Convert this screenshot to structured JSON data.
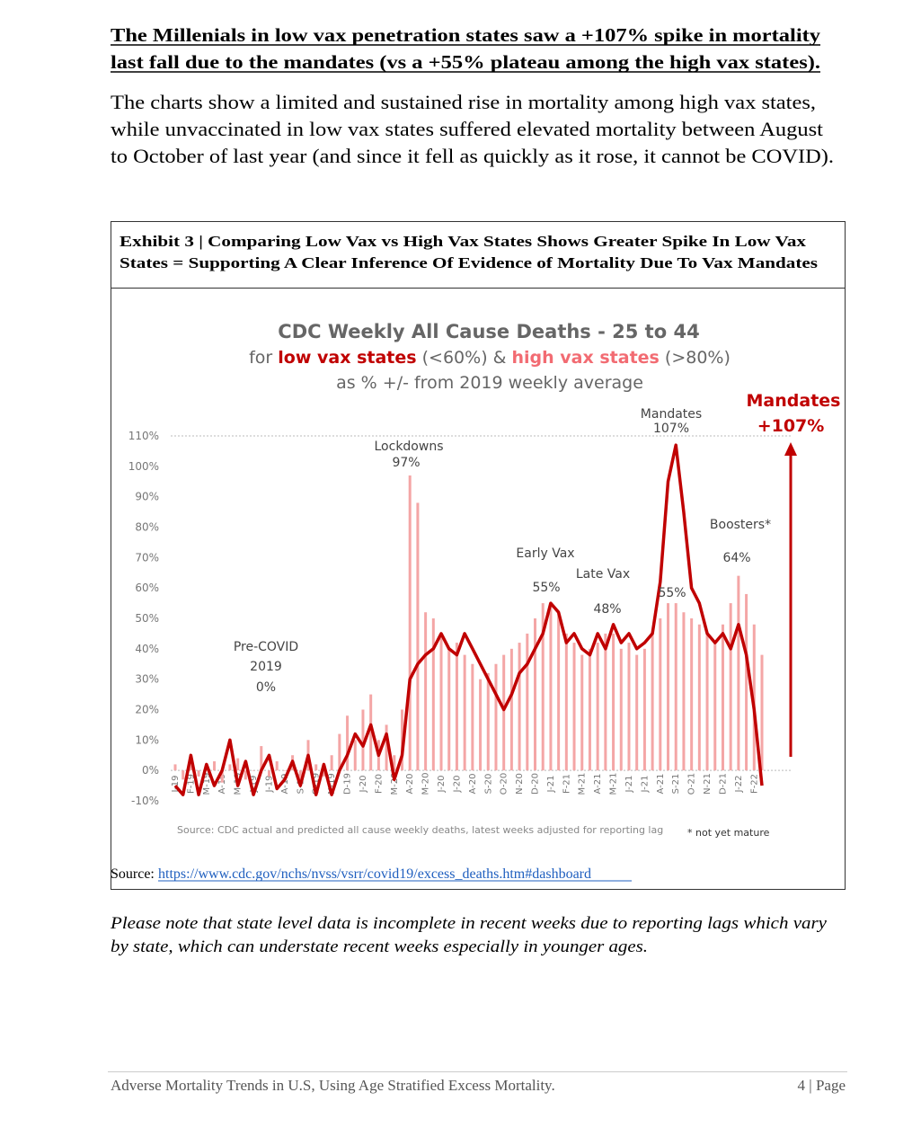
{
  "heading": [
    "The Millenials in low vax penetration states saw a +107% spike in mortality",
    "last fall due to the mandates (vs a +55% plateau among the high vax states)."
  ],
  "intro": [
    "The charts show a limited and sustained rise in mortality among high vax states,",
    "while unvaccinated in low vax states suffered elevated mortality between August",
    "to October of last year (and since it fell as quickly as it rose, it cannot be COVID)."
  ],
  "exhibit": {
    "title": [
      "Exhibit 3 | Comparing Low Vax vs High Vax States Shows Greater Spike In Low Vax",
      "States = Supporting A Clear Inference Of Evidence of Mortality Due To Vax Mandates"
    ],
    "source_label": "Source:",
    "source_url": "https://www.cdc.gov/nchs/nvss/vsrr/covid19/excess_deaths.htm#dashboard"
  },
  "chart_data": {
    "type": "combo",
    "title": "CDC Weekly All Cause Deaths - 25 to 44",
    "subtitle": [
      "for ",
      "low vax states",
      " (<60%) & ",
      "high vax states",
      " (>80%)"
    ],
    "subtitle2": "as % +/- from 2019 weekly average",
    "categories": [
      "J-19",
      null,
      "F-19",
      null,
      "M-19",
      null,
      "A-19",
      null,
      "M-19",
      null,
      "J-19",
      null,
      "J-19",
      null,
      "A-19",
      null,
      "S-19",
      null,
      "O-19",
      null,
      "N-19",
      null,
      "D-19",
      null,
      "J-20",
      null,
      "F-20",
      null,
      "M-20",
      null,
      "A-20",
      null,
      "M-20",
      null,
      "J-20",
      null,
      "J-20",
      null,
      "A-20",
      null,
      "S-20",
      null,
      "O-20",
      null,
      "N-20",
      null,
      "D-20",
      null,
      "J-21",
      null,
      "F-21",
      null,
      "M-21",
      null,
      "A-21",
      null,
      "M-21",
      null,
      "J-21",
      null,
      "J-21",
      null,
      "A-21",
      null,
      "S-21",
      null,
      "O-21",
      null,
      "N-21",
      null,
      "D-21",
      null,
      "J-22",
      null,
      "F-22",
      null
    ],
    "series": [
      {
        "kind": "bar",
        "color": "#f4a6a6",
        "values": [
          2,
          -3,
          5,
          -2,
          0,
          3,
          -4,
          2,
          4,
          -3,
          0,
          8,
          -2,
          3,
          0,
          5,
          -3,
          10,
          2,
          -2,
          5,
          12,
          18,
          10,
          20,
          25,
          10,
          15,
          5,
          20,
          97,
          88,
          52,
          50,
          45,
          40,
          42,
          38,
          35,
          30,
          32,
          35,
          38,
          40,
          42,
          45,
          50,
          55,
          55,
          52,
          45,
          42,
          38,
          40,
          42,
          45,
          45,
          40,
          42,
          38,
          40,
          45,
          50,
          55,
          55,
          52,
          50,
          48,
          45,
          42,
          48,
          55,
          64,
          58,
          48,
          38
        ]
      },
      {
        "kind": "line",
        "color": "#c00000",
        "values": [
          -5,
          -8,
          5,
          -8,
          2,
          -5,
          0,
          10,
          -5,
          3,
          -8,
          0,
          5,
          -6,
          -3,
          3,
          -5,
          5,
          -8,
          2,
          -8,
          0,
          5,
          12,
          8,
          15,
          5,
          12,
          -3,
          5,
          30,
          35,
          38,
          40,
          45,
          40,
          38,
          45,
          40,
          35,
          30,
          25,
          20,
          25,
          32,
          35,
          40,
          45,
          55,
          52,
          42,
          45,
          40,
          38,
          45,
          40,
          48,
          42,
          45,
          40,
          42,
          45,
          62,
          95,
          107,
          85,
          60,
          55,
          45,
          42,
          45,
          40,
          48,
          38,
          20,
          -5
        ]
      }
    ],
    "ylim": [
      -10,
      110
    ],
    "yticks": [
      {
        "value": -10,
        "label": "-10%"
      },
      {
        "value": 0,
        "label": "0%"
      },
      {
        "value": 10,
        "label": "10%"
      },
      {
        "value": 20,
        "label": "20%"
      },
      {
        "value": 30,
        "label": "30%"
      },
      {
        "value": 40,
        "label": "40%"
      },
      {
        "value": 50,
        "label": "50%"
      },
      {
        "value": 60,
        "label": "60%"
      },
      {
        "value": 70,
        "label": "70%"
      },
      {
        "value": 80,
        "label": "80%"
      },
      {
        "value": 90,
        "label": "90%"
      },
      {
        "value": 100,
        "label": "100%"
      },
      {
        "value": 110,
        "label": "110%"
      }
    ],
    "annotations": [
      "Mandates",
      "107%",
      "Lockdowns",
      "97%",
      "Pre-COVID",
      "2019",
      "0%",
      "Early Vax",
      "55%",
      "Late Vax",
      "48%",
      "55%",
      "Boosters*",
      "64%",
      "Mandates",
      "+107%"
    ],
    "source": "Source: CDC actual and predicted all cause weekly deaths, latest weeks adjusted for reporting lag",
    "footnote": "* not yet mature"
  },
  "note": [
    "Please note that state level data is incomplete in recent weeks due to reporting lags which vary",
    "by state, which can understate recent weeks especially in younger ages."
  ],
  "footer": {
    "left": "Adverse Mortality Trends in U.S, Using Age Stratified Excess Mortality.",
    "right": "4 | Page"
  }
}
